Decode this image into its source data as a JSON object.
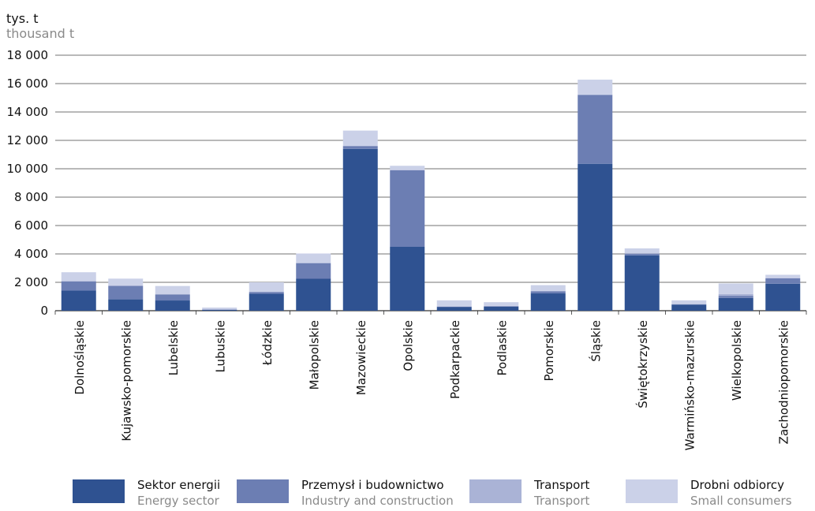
{
  "unit": {
    "pl": "tys. t",
    "en": "thousand t"
  },
  "chart_data": {
    "type": "bar",
    "stacked": true,
    "categories": [
      "Dolnośląskie",
      "Kujawsko-pomorskie",
      "Lubelskie",
      "Lubuskie",
      "Łódzkie",
      "Małopolskie",
      "Mazowieckie",
      "Opolskie",
      "Podkarpackie",
      "Podlaskie",
      "Pomorskie",
      "Śląskie",
      "Świętokrzyskie",
      "Warmińsko-mazurskie",
      "Wielkopolskie",
      "Zachodniopomorskie"
    ],
    "series": [
      {
        "name": "Sektor energii",
        "name_en": "Energy sector",
        "color": "#2f5291",
        "values": [
          1420,
          800,
          720,
          60,
          1200,
          2250,
          11400,
          4500,
          250,
          280,
          1220,
          10350,
          3900,
          430,
          900,
          1900
        ]
      },
      {
        "name": "Przemysł i budownictwo",
        "name_en": "Industry and construction",
        "color": "#6c7eb3",
        "values": [
          650,
          950,
          420,
          20,
          120,
          1100,
          200,
          5400,
          40,
          40,
          150,
          4850,
          120,
          20,
          150,
          380
        ]
      },
      {
        "name": "Transport",
        "name_en": "Transport",
        "color": "#aab3d6",
        "values": [
          10,
          10,
          20,
          20,
          10,
          30,
          10,
          30,
          20,
          20,
          30,
          30,
          20,
          20,
          120,
          20
        ]
      },
      {
        "name": "Drobni odbiorcy",
        "name_en": "Small consumers",
        "color": "#cbd1e8",
        "values": [
          630,
          500,
          580,
          120,
          670,
          650,
          1080,
          280,
          420,
          260,
          400,
          1050,
          350,
          260,
          750,
          230
        ]
      }
    ],
    "yticks": [
      "0",
      "2 000",
      "4 000",
      "6 000",
      "8 000",
      "10 000",
      "12 000",
      "14 000",
      "16 000",
      "18 000"
    ],
    "ylim": [
      0,
      18000
    ],
    "grid": true,
    "legend_position": "bottom"
  }
}
